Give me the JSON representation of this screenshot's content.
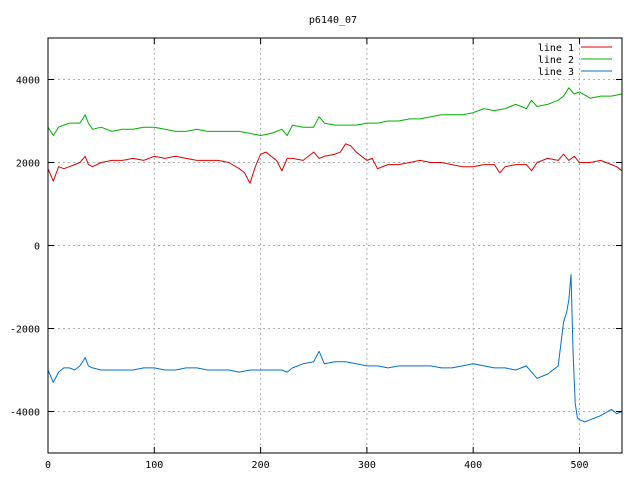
{
  "chart_data": {
    "type": "line",
    "title": "p6140_07",
    "xlabel": "",
    "ylabel": "",
    "xlim": [
      0,
      540
    ],
    "ylim": [
      -5000,
      5000
    ],
    "xticks": [
      0,
      100,
      200,
      300,
      400,
      500
    ],
    "yticks": [
      -4000,
      -2000,
      0,
      2000,
      4000
    ],
    "grid": true,
    "legend_position": "top-right",
    "series": [
      {
        "name": "line 1",
        "color": "#e00000",
        "x": [
          0,
          5,
          10,
          15,
          20,
          25,
          30,
          35,
          38,
          42,
          50,
          60,
          70,
          80,
          90,
          100,
          110,
          120,
          130,
          140,
          150,
          160,
          170,
          180,
          185,
          190,
          195,
          200,
          205,
          210,
          215,
          220,
          225,
          230,
          240,
          250,
          255,
          260,
          270,
          275,
          280,
          285,
          290,
          295,
          300,
          305,
          310,
          320,
          330,
          340,
          350,
          360,
          370,
          380,
          390,
          400,
          410,
          420,
          425,
          430,
          440,
          450,
          455,
          460,
          470,
          480,
          485,
          490,
          495,
          500,
          510,
          520,
          530,
          535,
          540
        ],
        "values": [
          1850,
          1550,
          1900,
          1850,
          1900,
          1950,
          2000,
          2150,
          1950,
          1900,
          2000,
          2050,
          2050,
          2100,
          2050,
          2150,
          2100,
          2150,
          2100,
          2050,
          2050,
          2050,
          2000,
          1850,
          1750,
          1500,
          1900,
          2200,
          2250,
          2150,
          2050,
          1800,
          2100,
          2100,
          2050,
          2250,
          2100,
          2150,
          2200,
          2250,
          2450,
          2400,
          2250,
          2150,
          2050,
          2100,
          1850,
          1950,
          1950,
          2000,
          2050,
          2000,
          2000,
          1950,
          1900,
          1900,
          1950,
          1950,
          1750,
          1900,
          1950,
          1950,
          1800,
          2000,
          2100,
          2050,
          2200,
          2050,
          2150,
          2000,
          2000,
          2050,
          1950,
          1900,
          1800
        ]
      },
      {
        "name": "line 2",
        "color": "#00b000",
        "x": [
          0,
          5,
          10,
          15,
          20,
          25,
          30,
          35,
          38,
          42,
          50,
          60,
          70,
          80,
          90,
          100,
          110,
          120,
          130,
          140,
          150,
          160,
          170,
          180,
          190,
          200,
          210,
          220,
          225,
          230,
          240,
          250,
          255,
          260,
          270,
          280,
          290,
          300,
          310,
          320,
          330,
          340,
          350,
          360,
          370,
          380,
          390,
          400,
          410,
          420,
          430,
          440,
          450,
          455,
          460,
          470,
          480,
          485,
          490,
          495,
          500,
          510,
          520,
          530,
          540
        ],
        "values": [
          2850,
          2650,
          2850,
          2900,
          2950,
          2950,
          2950,
          3150,
          2950,
          2800,
          2850,
          2750,
          2800,
          2800,
          2850,
          2850,
          2800,
          2750,
          2750,
          2800,
          2750,
          2750,
          2750,
          2750,
          2700,
          2650,
          2700,
          2800,
          2650,
          2900,
          2850,
          2850,
          3100,
          2950,
          2900,
          2900,
          2900,
          2950,
          2950,
          3000,
          3000,
          3050,
          3050,
          3100,
          3150,
          3150,
          3150,
          3200,
          3300,
          3250,
          3300,
          3400,
          3300,
          3500,
          3350,
          3400,
          3500,
          3600,
          3800,
          3650,
          3700,
          3550,
          3600,
          3600,
          3650
        ]
      },
      {
        "name": "line 3",
        "color": "#0070d0",
        "x": [
          0,
          5,
          10,
          15,
          20,
          25,
          30,
          35,
          38,
          42,
          50,
          60,
          70,
          80,
          90,
          100,
          110,
          120,
          130,
          140,
          150,
          160,
          170,
          180,
          190,
          200,
          210,
          220,
          225,
          230,
          240,
          250,
          255,
          260,
          270,
          280,
          290,
          300,
          310,
          320,
          330,
          340,
          350,
          360,
          370,
          380,
          390,
          400,
          410,
          420,
          430,
          440,
          450,
          460,
          470,
          475,
          480,
          485,
          488,
          490,
          492,
          494,
          496,
          498,
          500,
          505,
          510,
          520,
          530,
          535,
          540
        ],
        "values": [
          -3000,
          -3300,
          -3050,
          -2950,
          -2950,
          -3000,
          -2900,
          -2700,
          -2900,
          -2950,
          -3000,
          -3000,
          -3000,
          -3000,
          -2950,
          -2950,
          -3000,
          -3000,
          -2950,
          -2950,
          -3000,
          -3000,
          -3000,
          -3050,
          -3000,
          -3000,
          -3000,
          -3000,
          -3050,
          -2950,
          -2850,
          -2800,
          -2550,
          -2850,
          -2800,
          -2800,
          -2850,
          -2900,
          -2900,
          -2950,
          -2900,
          -2900,
          -2900,
          -2900,
          -2950,
          -2950,
          -2900,
          -2850,
          -2900,
          -2950,
          -2950,
          -3000,
          -2900,
          -3200,
          -3100,
          -3000,
          -2900,
          -1850,
          -1600,
          -1300,
          -700,
          -2600,
          -3800,
          -4150,
          -4200,
          -4250,
          -4200,
          -4100,
          -3950,
          -4050,
          -4000
        ]
      }
    ]
  }
}
